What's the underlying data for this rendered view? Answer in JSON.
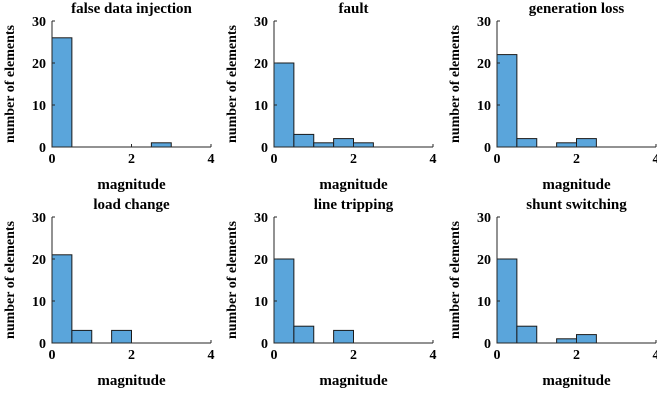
{
  "chart_data": [
    {
      "type": "bar",
      "title": "false data injection",
      "xlabel": "magnitude",
      "ylabel": "number of elements",
      "xlim": [
        0,
        4
      ],
      "ylim": [
        0,
        30
      ],
      "xticks": [
        "0",
        "2",
        "4"
      ],
      "yticks": [
        "0",
        "10",
        "20",
        "30"
      ],
      "bin_width": 0.5,
      "bins": [
        {
          "x": 0.0,
          "count": 26
        },
        {
          "x": 2.5,
          "count": 1
        }
      ]
    },
    {
      "type": "bar",
      "title": "fault",
      "xlabel": "magnitude",
      "ylabel": "number of elements",
      "xlim": [
        0,
        4
      ],
      "ylim": [
        0,
        30
      ],
      "xticks": [
        "0",
        "2",
        "4"
      ],
      "yticks": [
        "0",
        "10",
        "20",
        "30"
      ],
      "bin_width": 0.5,
      "bins": [
        {
          "x": 0.0,
          "count": 20
        },
        {
          "x": 0.5,
          "count": 3
        },
        {
          "x": 1.0,
          "count": 1
        },
        {
          "x": 1.5,
          "count": 2
        },
        {
          "x": 2.0,
          "count": 1
        }
      ]
    },
    {
      "type": "bar",
      "title": "generation loss",
      "xlabel": "magnitude",
      "ylabel": "number of elements",
      "xlim": [
        0,
        4
      ],
      "ylim": [
        0,
        30
      ],
      "xticks": [
        "0",
        "2",
        "4"
      ],
      "yticks": [
        "0",
        "10",
        "20",
        "30"
      ],
      "bin_width": 0.5,
      "bins": [
        {
          "x": 0.0,
          "count": 22
        },
        {
          "x": 0.5,
          "count": 2
        },
        {
          "x": 1.5,
          "count": 1
        },
        {
          "x": 2.0,
          "count": 2
        }
      ]
    },
    {
      "type": "bar",
      "title": "load change",
      "xlabel": "magnitude",
      "ylabel": "number of elements",
      "xlim": [
        0,
        4
      ],
      "ylim": [
        0,
        30
      ],
      "xticks": [
        "0",
        "2",
        "4"
      ],
      "yticks": [
        "0",
        "10",
        "20",
        "30"
      ],
      "bin_width": 0.5,
      "bins": [
        {
          "x": 0.0,
          "count": 21
        },
        {
          "x": 0.5,
          "count": 3
        },
        {
          "x": 1.5,
          "count": 3
        }
      ]
    },
    {
      "type": "bar",
      "title": "line tripping",
      "xlabel": "magnitude",
      "ylabel": "number of elements",
      "xlim": [
        0,
        4
      ],
      "ylim": [
        0,
        30
      ],
      "xticks": [
        "0",
        "2",
        "4"
      ],
      "yticks": [
        "0",
        "10",
        "20",
        "30"
      ],
      "bin_width": 0.5,
      "bins": [
        {
          "x": 0.0,
          "count": 20
        },
        {
          "x": 0.5,
          "count": 4
        },
        {
          "x": 1.5,
          "count": 3
        }
      ]
    },
    {
      "type": "bar",
      "title": "shunt switching",
      "xlabel": "magnitude",
      "ylabel": "number of elements",
      "xlim": [
        0,
        4
      ],
      "ylim": [
        0,
        30
      ],
      "xticks": [
        "0",
        "2",
        "4"
      ],
      "yticks": [
        "0",
        "10",
        "20",
        "30"
      ],
      "bin_width": 0.5,
      "bins": [
        {
          "x": 0.0,
          "count": 20
        },
        {
          "x": 0.5,
          "count": 4
        },
        {
          "x": 1.5,
          "count": 1
        },
        {
          "x": 2.0,
          "count": 2
        }
      ]
    }
  ],
  "colors": {
    "bar_fill": "#5aa5db",
    "bar_stroke": "#1a1a1a",
    "axis": "#262626"
  }
}
